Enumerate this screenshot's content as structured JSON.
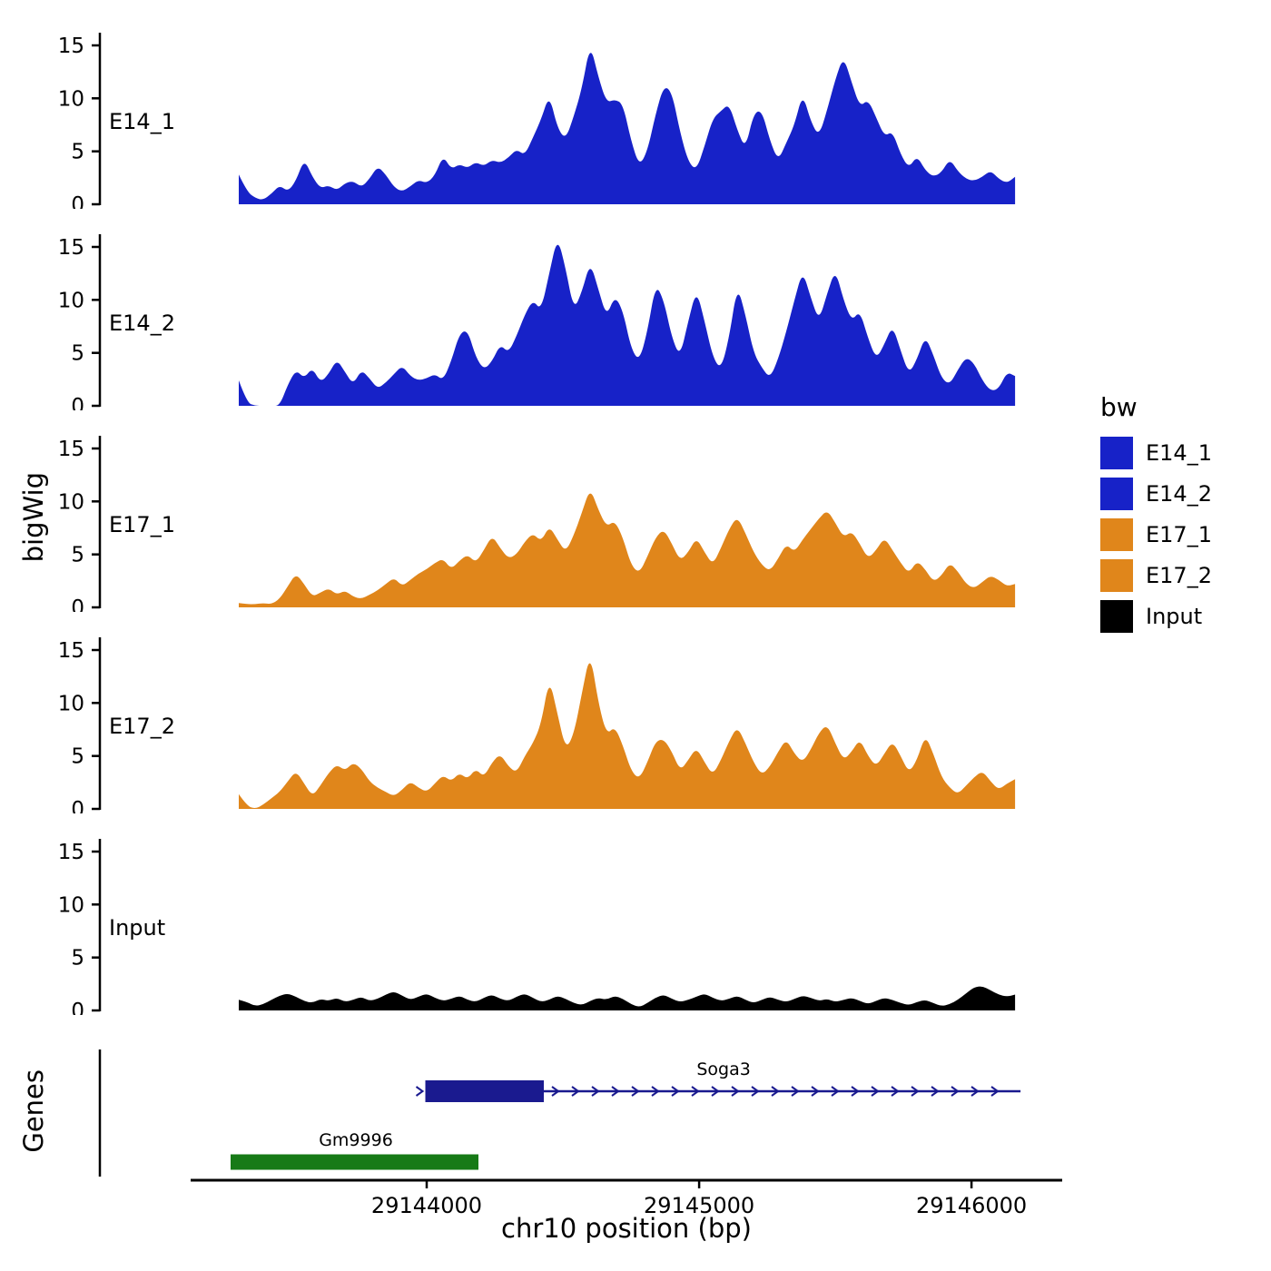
{
  "figure": {
    "ylabel": "bigWig",
    "xlabel": "chr10 position (bp)",
    "genes_axis_label": "Genes",
    "legend": {
      "title": "bw",
      "items": [
        {
          "label": "E14_1",
          "color": "#1722c8"
        },
        {
          "label": "E14_2",
          "color": "#1722c8"
        },
        {
          "label": "E17_1",
          "color": "#e0861b"
        },
        {
          "label": "E17_2",
          "color": "#e0861b"
        },
        {
          "label": "Input",
          "color": "#000000"
        }
      ]
    }
  },
  "chart_data": {
    "type": "area",
    "title": "",
    "xlabel": "chr10 position (bp)",
    "ylabel": "bigWig",
    "x_domain": [
      29142800,
      29146333
    ],
    "x_ticks": [
      29144000,
      29145000,
      29146000
    ],
    "y_ticks": [
      0,
      5,
      10,
      15
    ],
    "ylim": [
      0,
      16
    ],
    "x_start": 29143310,
    "x_step": 30,
    "tracks": [
      {
        "name": "E14_1",
        "color": "#1722c8",
        "values": [
          2.8,
          1.2,
          0.6,
          0.4,
          1.0,
          1.8,
          1.2,
          2.2,
          4.3,
          2.6,
          1.5,
          1.8,
          1.3,
          2.0,
          2.2,
          1.6,
          2.4,
          3.6,
          2.8,
          1.6,
          1.2,
          1.7,
          2.3,
          2.0,
          2.7,
          4.6,
          3.3,
          3.8,
          3.4,
          4.0,
          3.6,
          4.2,
          3.9,
          4.4,
          5.2,
          4.6,
          6.3,
          8.0,
          10.4,
          7.2,
          6.1,
          8.3,
          11.0,
          15.2,
          12.0,
          9.6,
          9.9,
          9.5,
          6.0,
          3.6,
          5.0,
          8.5,
          11.2,
          10.6,
          6.8,
          4.0,
          3.2,
          5.5,
          8.1,
          8.8,
          9.5,
          7.0,
          5.2,
          8.6,
          8.9,
          6.0,
          4.1,
          5.8,
          7.5,
          10.5,
          7.8,
          6.4,
          8.9,
          11.8,
          14.0,
          11.5,
          9.2,
          9.9,
          8.2,
          6.4,
          6.9,
          4.7,
          3.4,
          4.6,
          3.2,
          2.6,
          3.0,
          4.3,
          3.1,
          2.4,
          2.2,
          2.6,
          3.2,
          2.4,
          2.0,
          2.6
        ]
      },
      {
        "name": "E14_2",
        "color": "#1722c8",
        "values": [
          2.4,
          0.3,
          0.0,
          0.0,
          0.0,
          0.0,
          2.0,
          3.4,
          2.6,
          3.6,
          2.2,
          3.0,
          4.4,
          3.2,
          2.0,
          3.4,
          2.6,
          1.6,
          2.2,
          3.0,
          3.8,
          2.8,
          2.4,
          2.6,
          3.0,
          2.4,
          4.2,
          6.8,
          7.2,
          4.6,
          3.4,
          4.2,
          5.8,
          5.0,
          6.6,
          8.6,
          10.0,
          9.0,
          12.5,
          16.0,
          13.0,
          9.0,
          10.8,
          13.6,
          11.0,
          8.4,
          10.4,
          9.0,
          5.4,
          4.2,
          7.0,
          11.5,
          10.0,
          6.4,
          4.6,
          8.0,
          11.0,
          8.0,
          4.6,
          3.4,
          6.4,
          11.4,
          8.6,
          5.0,
          3.6,
          2.6,
          4.4,
          7.0,
          10.0,
          12.8,
          10.2,
          8.0,
          10.6,
          12.9,
          10.0,
          8.0,
          9.0,
          6.4,
          4.4,
          5.8,
          7.6,
          5.2,
          3.0,
          4.4,
          6.6,
          4.8,
          2.6,
          2.0,
          3.4,
          4.6,
          4.0,
          2.4,
          1.4,
          1.6,
          3.2,
          2.8
        ]
      },
      {
        "name": "E17_1",
        "color": "#e0861b",
        "values": [
          0.4,
          0.3,
          0.3,
          0.4,
          0.3,
          0.8,
          2.0,
          3.2,
          2.2,
          1.0,
          1.4,
          1.8,
          1.2,
          1.6,
          1.0,
          0.8,
          1.2,
          1.6,
          2.2,
          2.8,
          2.0,
          2.6,
          3.2,
          3.6,
          4.2,
          4.6,
          3.6,
          4.4,
          5.0,
          4.2,
          5.4,
          6.8,
          5.6,
          4.6,
          5.0,
          6.2,
          7.0,
          6.2,
          7.7,
          6.4,
          5.2,
          6.8,
          9.0,
          11.3,
          9.2,
          7.6,
          8.2,
          6.6,
          4.0,
          3.2,
          4.8,
          6.6,
          7.4,
          6.0,
          4.4,
          5.2,
          6.6,
          5.2,
          4.0,
          5.6,
          7.4,
          8.6,
          7.0,
          5.2,
          4.0,
          3.4,
          4.6,
          6.0,
          5.2,
          6.4,
          7.4,
          8.4,
          9.2,
          8.0,
          6.6,
          7.2,
          6.0,
          4.6,
          5.4,
          6.6,
          5.4,
          4.2,
          3.2,
          4.4,
          3.6,
          2.4,
          3.0,
          4.2,
          3.4,
          2.2,
          1.8,
          2.4,
          3.0,
          2.6,
          2.0,
          2.2
        ]
      },
      {
        "name": "E17_2",
        "color": "#e0861b",
        "values": [
          1.4,
          0.3,
          0.0,
          0.4,
          1.0,
          1.6,
          2.6,
          3.6,
          2.4,
          1.2,
          2.2,
          3.4,
          4.2,
          3.6,
          4.4,
          3.8,
          2.6,
          2.0,
          1.6,
          1.2,
          1.8,
          2.6,
          2.0,
          1.6,
          2.4,
          3.2,
          2.6,
          3.4,
          2.8,
          3.8,
          3.0,
          4.4,
          5.2,
          4.0,
          3.4,
          5.0,
          6.2,
          8.0,
          12.4,
          9.0,
          5.6,
          7.0,
          11.0,
          14.8,
          10.0,
          7.0,
          7.8,
          6.0,
          3.6,
          2.8,
          4.4,
          6.4,
          6.6,
          5.4,
          3.6,
          4.6,
          5.8,
          4.4,
          3.2,
          4.6,
          6.4,
          7.8,
          6.2,
          4.4,
          3.2,
          4.0,
          5.4,
          6.6,
          5.2,
          4.4,
          5.6,
          7.2,
          8.0,
          6.2,
          4.6,
          5.4,
          6.6,
          5.0,
          4.0,
          5.2,
          6.4,
          5.0,
          3.4,
          4.6,
          7.0,
          5.2,
          3.0,
          2.0,
          1.4,
          2.2,
          3.0,
          3.6,
          2.6,
          1.8,
          2.4,
          2.8
        ]
      },
      {
        "name": "Input",
        "color": "#000000",
        "values": [
          1.0,
          0.8,
          0.4,
          0.6,
          1.0,
          1.4,
          1.6,
          1.3,
          0.9,
          0.7,
          1.1,
          0.9,
          1.2,
          0.8,
          1.0,
          1.3,
          0.9,
          1.1,
          1.5,
          1.8,
          1.4,
          1.0,
          1.3,
          1.6,
          1.2,
          0.9,
          1.1,
          1.4,
          1.0,
          0.8,
          1.2,
          1.5,
          1.1,
          0.9,
          1.3,
          1.6,
          1.2,
          0.8,
          1.0,
          1.4,
          1.1,
          0.7,
          0.5,
          0.9,
          1.2,
          1.0,
          1.4,
          1.1,
          0.6,
          0.3,
          0.7,
          1.2,
          1.5,
          1.1,
          0.8,
          1.0,
          1.3,
          1.6,
          1.2,
          0.9,
          1.1,
          1.4,
          1.0,
          0.7,
          1.0,
          1.3,
          1.0,
          0.8,
          1.1,
          1.4,
          1.2,
          0.9,
          1.1,
          0.8,
          1.0,
          1.2,
          0.9,
          0.6,
          0.9,
          1.2,
          1.0,
          0.7,
          0.5,
          0.8,
          1.0,
          0.7,
          0.4,
          0.6,
          1.0,
          1.6,
          2.2,
          2.3,
          1.9,
          1.5,
          1.3,
          1.5
        ]
      }
    ],
    "genes": [
      {
        "name": "Soga3",
        "color": "#1a1a8f",
        "type": "transcript",
        "strand": "+",
        "exon": [
          29143995,
          29144430
        ],
        "line_end": 29146180,
        "label_pos": 29145090,
        "row": 0
      },
      {
        "name": "Gm9996",
        "color": "#177a17",
        "type": "box",
        "strand": "+",
        "exon": [
          29143280,
          29144190
        ],
        "line_end": null,
        "label_pos": 29143740,
        "row": 1
      }
    ]
  }
}
